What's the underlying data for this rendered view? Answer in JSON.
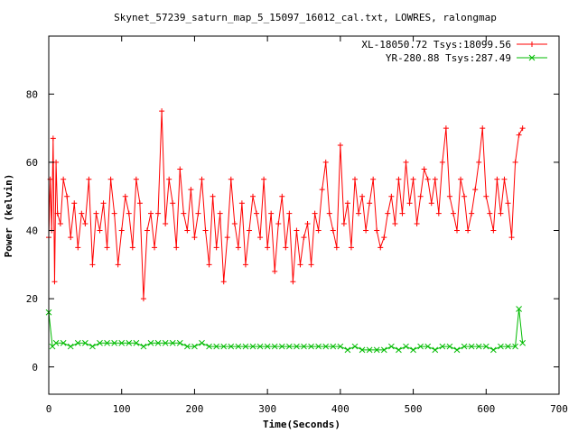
{
  "chart_data": {
    "type": "line",
    "title": "Skynet_57239_saturn_map_5_15097_16012_cal.txt, LOWRES, ralongmap",
    "xlabel": "Time(Seconds)",
    "ylabel": "Power (kelvin)",
    "xlim": [
      0,
      700
    ],
    "ylim": [
      -8,
      97
    ],
    "xticks": [
      "0",
      "100",
      "200",
      "300",
      "400",
      "500",
      "600",
      "700"
    ],
    "yticks": [
      "0",
      "20",
      "40",
      "60",
      "80"
    ],
    "grid": false,
    "legend_position": "top-right",
    "series": [
      {
        "name": "XL-18050.72 Tsys:18099.56",
        "color": "#ff0000",
        "marker": "plus",
        "x": [
          0,
          2,
          4,
          6,
          8,
          10,
          12,
          16,
          20,
          25,
          30,
          35,
          40,
          45,
          50,
          55,
          60,
          65,
          70,
          75,
          80,
          85,
          90,
          95,
          100,
          105,
          110,
          115,
          120,
          125,
          130,
          135,
          140,
          145,
          150,
          155,
          160,
          165,
          170,
          175,
          180,
          185,
          190,
          195,
          200,
          205,
          210,
          215,
          220,
          225,
          230,
          235,
          240,
          245,
          250,
          255,
          260,
          265,
          270,
          275,
          280,
          285,
          290,
          295,
          300,
          305,
          310,
          315,
          320,
          325,
          330,
          335,
          340,
          345,
          350,
          355,
          360,
          365,
          370,
          375,
          380,
          385,
          390,
          395,
          400,
          405,
          410,
          415,
          420,
          425,
          430,
          435,
          440,
          445,
          450,
          455,
          460,
          465,
          470,
          475,
          480,
          485,
          490,
          495,
          500,
          505,
          510,
          515,
          520,
          525,
          530,
          535,
          540,
          545,
          550,
          555,
          560,
          565,
          570,
          575,
          580,
          585,
          590,
          595,
          600,
          605,
          610,
          615,
          620,
          625,
          630,
          635,
          640,
          645,
          650
        ],
        "y": [
          38,
          55,
          40,
          67,
          25,
          60,
          45,
          42,
          55,
          50,
          38,
          48,
          35,
          45,
          42,
          55,
          30,
          45,
          40,
          48,
          35,
          55,
          45,
          30,
          40,
          50,
          45,
          35,
          55,
          48,
          20,
          40,
          45,
          35,
          45,
          75,
          42,
          55,
          48,
          35,
          58,
          45,
          40,
          52,
          38,
          45,
          55,
          40,
          30,
          50,
          35,
          45,
          25,
          38,
          55,
          42,
          35,
          48,
          30,
          40,
          50,
          45,
          38,
          55,
          35,
          45,
          28,
          42,
          50,
          35,
          45,
          25,
          40,
          30,
          38,
          42,
          30,
          45,
          40,
          52,
          60,
          45,
          40,
          35,
          65,
          42,
          48,
          35,
          55,
          45,
          50,
          40,
          48,
          55,
          40,
          35,
          38,
          45,
          50,
          42,
          55,
          45,
          60,
          48,
          55,
          42,
          50,
          58,
          55,
          48,
          55,
          45,
          60,
          70,
          50,
          45,
          40,
          55,
          50,
          40,
          45,
          52,
          60,
          70,
          50,
          45,
          40,
          55,
          45,
          55,
          48,
          38,
          60,
          68,
          70
        ]
      },
      {
        "name": "YR-280.88 Tsys:287.49",
        "color": "#00bb00",
        "marker": "cross",
        "x": [
          0,
          5,
          10,
          20,
          30,
          40,
          50,
          60,
          70,
          80,
          90,
          100,
          110,
          120,
          130,
          140,
          150,
          160,
          170,
          180,
          190,
          200,
          210,
          220,
          230,
          240,
          250,
          260,
          270,
          280,
          290,
          300,
          310,
          320,
          330,
          340,
          350,
          360,
          370,
          380,
          390,
          400,
          410,
          420,
          430,
          440,
          450,
          460,
          470,
          480,
          490,
          500,
          510,
          520,
          530,
          540,
          550,
          560,
          570,
          580,
          590,
          600,
          610,
          620,
          630,
          640,
          645,
          650
        ],
        "y": [
          16,
          6,
          7,
          7,
          6,
          7,
          7,
          6,
          7,
          7,
          7,
          7,
          7,
          7,
          6,
          7,
          7,
          7,
          7,
          7,
          6,
          6,
          7,
          6,
          6,
          6,
          6,
          6,
          6,
          6,
          6,
          6,
          6,
          6,
          6,
          6,
          6,
          6,
          6,
          6,
          6,
          6,
          5,
          6,
          5,
          5,
          5,
          5,
          6,
          5,
          6,
          5,
          6,
          6,
          5,
          6,
          6,
          5,
          6,
          6,
          6,
          6,
          5,
          6,
          6,
          6,
          17,
          7
        ]
      }
    ]
  }
}
